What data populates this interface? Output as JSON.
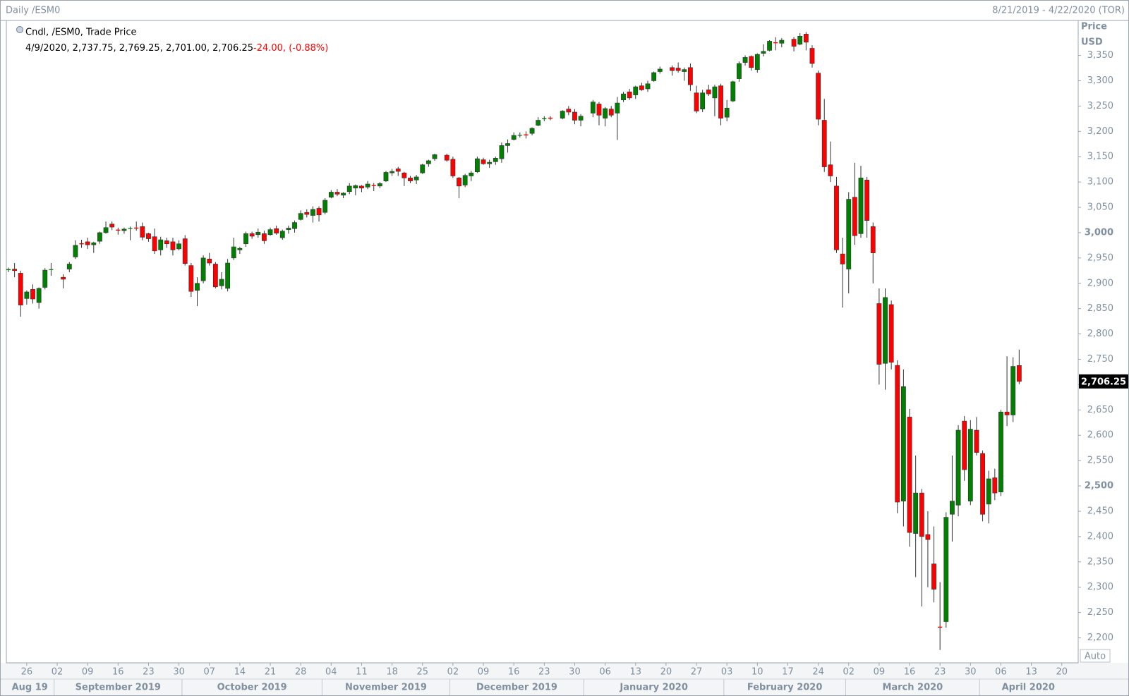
{
  "header": {
    "title": "Daily /ESM0",
    "range": "8/21/2019 - 4/22/2020 (TOR)"
  },
  "chart_data": {
    "type": "candlestick",
    "legend": "Cndl, /ESM0, Trade Price",
    "readout": "4/9/2020, 2,737.75, 2,769.25, 2,701.00, 2,706.25",
    "change": "-24.00, (-0.88%)",
    "ylabel": "Price",
    "yunit": "USD",
    "auto_button": "Auto",
    "up_color": "#008000",
    "down_color": "#ff0000",
    "x": [
      "2019-08-21",
      "2019-08-22",
      "2019-08-23",
      "2019-08-26",
      "2019-08-27",
      "2019-08-28",
      "2019-08-29",
      "2019-08-30",
      "2019-09-03",
      "2019-09-04",
      "2019-09-05",
      "2019-09-06",
      "2019-09-09",
      "2019-09-10",
      "2019-09-11",
      "2019-09-12",
      "2019-09-13",
      "2019-09-16",
      "2019-09-17",
      "2019-09-18",
      "2019-09-19",
      "2019-09-20",
      "2019-09-23",
      "2019-09-24",
      "2019-09-25",
      "2019-09-26",
      "2019-09-27",
      "2019-09-30",
      "2019-10-01",
      "2019-10-02",
      "2019-10-03",
      "2019-10-04",
      "2019-10-07",
      "2019-10-08",
      "2019-10-09",
      "2019-10-10",
      "2019-10-11",
      "2019-10-14",
      "2019-10-15",
      "2019-10-16",
      "2019-10-17",
      "2019-10-18",
      "2019-10-21",
      "2019-10-22",
      "2019-10-23",
      "2019-10-24",
      "2019-10-25",
      "2019-10-28",
      "2019-10-29",
      "2019-10-30",
      "2019-10-31",
      "2019-11-01",
      "2019-11-04",
      "2019-11-05",
      "2019-11-06",
      "2019-11-07",
      "2019-11-08",
      "2019-11-11",
      "2019-11-12",
      "2019-11-13",
      "2019-11-14",
      "2019-11-15",
      "2019-11-18",
      "2019-11-19",
      "2019-11-20",
      "2019-11-21",
      "2019-11-22",
      "2019-11-25",
      "2019-11-26",
      "2019-11-27",
      "2019-11-29",
      "2019-12-02",
      "2019-12-03",
      "2019-12-04",
      "2019-12-05",
      "2019-12-06",
      "2019-12-09",
      "2019-12-10",
      "2019-12-11",
      "2019-12-12",
      "2019-12-13",
      "2019-12-16",
      "2019-12-17",
      "2019-12-18",
      "2019-12-19",
      "2019-12-20",
      "2019-12-23",
      "2019-12-24",
      "2019-12-26",
      "2019-12-27",
      "2019-12-30",
      "2019-12-31",
      "2020-01-02",
      "2020-01-03",
      "2020-01-06",
      "2020-01-07",
      "2020-01-08",
      "2020-01-09",
      "2020-01-10",
      "2020-01-13",
      "2020-01-14",
      "2020-01-15",
      "2020-01-16",
      "2020-01-17",
      "2020-01-21",
      "2020-01-22",
      "2020-01-23",
      "2020-01-24",
      "2020-01-27",
      "2020-01-28",
      "2020-01-29",
      "2020-01-30",
      "2020-01-31",
      "2020-02-03",
      "2020-02-04",
      "2020-02-05",
      "2020-02-06",
      "2020-02-07",
      "2020-02-10",
      "2020-02-11",
      "2020-02-12",
      "2020-02-13",
      "2020-02-14",
      "2020-02-18",
      "2020-02-19",
      "2020-02-20",
      "2020-02-21",
      "2020-02-24",
      "2020-02-25",
      "2020-02-26",
      "2020-02-27",
      "2020-02-28",
      "2020-03-02",
      "2020-03-03",
      "2020-03-04",
      "2020-03-05",
      "2020-03-06",
      "2020-03-09",
      "2020-03-10",
      "2020-03-11",
      "2020-03-12",
      "2020-03-13",
      "2020-03-16",
      "2020-03-17",
      "2020-03-18",
      "2020-03-19",
      "2020-03-20",
      "2020-03-23",
      "2020-03-24",
      "2020-03-25",
      "2020-03-26",
      "2020-03-27",
      "2020-03-30",
      "2020-03-31",
      "2020-04-01",
      "2020-04-02",
      "2020-04-03",
      "2020-04-06",
      "2020-04-07",
      "2020-04-08",
      "2020-04-09"
    ],
    "open": [
      2926,
      2928,
      2920,
      2870,
      2888,
      2862,
      2892,
      2928,
      2912,
      2928,
      2952,
      2979,
      2982,
      2976,
      2983,
      3000,
      3017,
      3006,
      3004,
      3008,
      3010,
      3012,
      2998,
      2992,
      2966,
      2984,
      2982,
      2968,
      2988,
      2935,
      2886,
      2905,
      2948,
      2938,
      2895,
      2890,
      2950,
      2966,
      2978,
      2998,
      2996,
      2998,
      2996,
      3008,
      2990,
      3006,
      3008,
      3026,
      3040,
      3034,
      3048,
      3040,
      3070,
      3080,
      3074,
      3081,
      3088,
      3092,
      3090,
      3094,
      3092,
      3102,
      3118,
      3126,
      3118,
      3108,
      3104,
      3118,
      3136,
      3146,
      3153,
      3145,
      3108,
      3094,
      3112,
      3120,
      3144,
      3136,
      3140,
      3146,
      3172,
      3184,
      3192,
      3194,
      3196,
      3212,
      3224,
      3227,
      3226,
      3244,
      3238,
      3222,
      3236,
      3254,
      3226,
      3244,
      3236,
      3262,
      3278,
      3272,
      3290,
      3284,
      3300,
      3318,
      3326,
      3325,
      3318,
      3326,
      3276,
      3244,
      3282,
      3266,
      3290,
      3228,
      3260,
      3304,
      3336,
      3348,
      3322,
      3354,
      3360,
      3376,
      3374,
      3382,
      3372,
      3392,
      3364,
      3315,
      3222,
      3134,
      3092,
      2958,
      2928,
      3070,
      2998,
      3104,
      3012,
      2860,
      2742,
      2858,
      2738,
      2470,
      2636,
      2406,
      2486,
      2404,
      2346,
      2222,
      2232,
      2444,
      2462,
      2628,
      2470,
      2610,
      2564,
      2464,
      2516,
      2488,
      2646,
      2640,
      2737.75
    ],
    "high": [
      2931,
      2940,
      2925,
      2886,
      2898,
      2892,
      2930,
      2940,
      2918,
      2942,
      2985,
      2986,
      2990,
      2982,
      3002,
      3022,
      3022,
      3010,
      3010,
      3012,
      3022,
      3020,
      3000,
      3008,
      2992,
      2990,
      2990,
      2985,
      2995,
      2940,
      2912,
      2955,
      2960,
      2942,
      2922,
      2948,
      2990,
      2972,
      3002,
      3002,
      3008,
      3004,
      3010,
      3014,
      3006,
      3014,
      3024,
      3044,
      3046,
      3052,
      3052,
      3068,
      3084,
      3086,
      3080,
      3098,
      3095,
      3094,
      3102,
      3098,
      3100,
      3122,
      3126,
      3130,
      3120,
      3112,
      3114,
      3136,
      3144,
      3156,
      3156,
      3150,
      3110,
      3116,
      3122,
      3150,
      3148,
      3144,
      3150,
      3178,
      3184,
      3198,
      3198,
      3200,
      3208,
      3228,
      3230,
      3230,
      3242,
      3250,
      3244,
      3234,
      3262,
      3258,
      3248,
      3250,
      3268,
      3278,
      3284,
      3290,
      3296,
      3300,
      3318,
      3328,
      3330,
      3336,
      3326,
      3334,
      3290,
      3282,
      3292,
      3292,
      3294,
      3262,
      3300,
      3338,
      3350,
      3350,
      3354,
      3372,
      3380,
      3386,
      3384,
      3386,
      3394,
      3396,
      3370,
      3320,
      3264,
      3180,
      3110,
      2990,
      3080,
      3138,
      3132,
      3110,
      3020,
      2890,
      2890,
      2866,
      2748,
      2730,
      2652,
      2560,
      2494,
      2450,
      2420,
      2310,
      2448,
      2560,
      2620,
      2638,
      2630,
      2636,
      2570,
      2530,
      2534,
      2650,
      2756,
      2754,
      2769.25
    ],
    "low": [
      2922,
      2912,
      2834,
      2858,
      2860,
      2850,
      2888,
      2915,
      2890,
      2922,
      2948,
      2970,
      2968,
      2960,
      2978,
      2998,
      3005,
      2996,
      2998,
      2985,
      3004,
      2985,
      2982,
      2958,
      2955,
      2970,
      2955,
      2965,
      2935,
      2873,
      2855,
      2900,
      2935,
      2890,
      2888,
      2884,
      2946,
      2958,
      2972,
      2988,
      2990,
      2978,
      2994,
      2996,
      2986,
      2998,
      3000,
      3024,
      3030,
      3020,
      3022,
      3036,
      3068,
      3072,
      3068,
      3076,
      3074,
      3080,
      3086,
      3082,
      3088,
      3100,
      3112,
      3112,
      3092,
      3098,
      3096,
      3116,
      3130,
      3142,
      3140,
      3108,
      3068,
      3090,
      3102,
      3118,
      3134,
      3128,
      3134,
      3138,
      3158,
      3182,
      3188,
      3186,
      3192,
      3210,
      3220,
      3222,
      3224,
      3232,
      3214,
      3210,
      3228,
      3212,
      3210,
      3228,
      3183,
      3258,
      3262,
      3264,
      3280,
      3278,
      3298,
      3314,
      3310,
      3316,
      3300,
      3280,
      3236,
      3238,
      3270,
      3230,
      3212,
      3220,
      3258,
      3298,
      3330,
      3320,
      3316,
      3348,
      3358,
      3360,
      3366,
      3358,
      3370,
      3360,
      3326,
      3212,
      3120,
      3100,
      2960,
      2852,
      2880,
      2976,
      2990,
      2990,
      2900,
      2700,
      2690,
      2730,
      2446,
      2420,
      2380,
      2320,
      2262,
      2300,
      2270,
      2176,
      2220,
      2390,
      2440,
      2510,
      2462,
      2560,
      2430,
      2426,
      2472,
      2480,
      2618,
      2626,
      2701
    ],
    "close": [
      2928,
      2925,
      2857,
      2883,
      2869,
      2890,
      2926,
      2928,
      2908,
      2938,
      2975,
      2977,
      2976,
      2980,
      3000,
      3010,
      3011,
      3004,
      3007,
      3009,
      3008,
      2991,
      2988,
      2964,
      2986,
      2978,
      2966,
      2978,
      2939,
      2884,
      2900,
      2950,
      2940,
      2893,
      2908,
      2940,
      2972,
      2969,
      2998,
      2993,
      3001,
      2984,
      3006,
      2999,
      3003,
      3009,
      3020,
      3038,
      3036,
      3046,
      3035,
      3064,
      3080,
      3076,
      3078,
      3092,
      3093,
      3088,
      3096,
      3092,
      3097,
      3119,
      3121,
      3121,
      3108,
      3102,
      3110,
      3134,
      3142,
      3154,
      3143,
      3112,
      3092,
      3113,
      3118,
      3146,
      3136,
      3139,
      3147,
      3172,
      3176,
      3192,
      3193,
      3192,
      3206,
      3222,
      3226,
      3225,
      3240,
      3238,
      3222,
      3230,
      3258,
      3232,
      3245,
      3232,
      3256,
      3274,
      3266,
      3288,
      3282,
      3294,
      3316,
      3323,
      3320,
      3320,
      3322,
      3292,
      3240,
      3276,
      3274,
      3288,
      3226,
      3246,
      3298,
      3334,
      3346,
      3326,
      3352,
      3358,
      3378,
      3374,
      3380,
      3368,
      3388,
      3376,
      3334,
      3224,
      3130,
      3112,
      2966,
      2938,
      3066,
      2994,
      3108,
      3024,
      2960,
      2740,
      2872,
      2744,
      2468,
      2696,
      2408,
      2486,
      2400,
      2394,
      2296,
      2220,
      2438,
      2470,
      2610,
      2532,
      2612,
      2566,
      2444,
      2514,
      2486,
      2646,
      2640,
      2736,
      2706.25
    ],
    "xlim": [
      "2019-08-21",
      "2020-04-22"
    ],
    "xticks": [
      {
        "value": "2019-08-26",
        "label": "26"
      },
      {
        "value": "2019-09-02",
        "label": "02"
      },
      {
        "value": "2019-09-09",
        "label": "09"
      },
      {
        "value": "2019-09-16",
        "label": "16"
      },
      {
        "value": "2019-09-23",
        "label": "23"
      },
      {
        "value": "2019-09-30",
        "label": "30"
      },
      {
        "value": "2019-10-07",
        "label": "07"
      },
      {
        "value": "2019-10-14",
        "label": "14"
      },
      {
        "value": "2019-10-21",
        "label": "21"
      },
      {
        "value": "2019-10-28",
        "label": "28"
      },
      {
        "value": "2019-11-04",
        "label": "04"
      },
      {
        "value": "2019-11-11",
        "label": "11"
      },
      {
        "value": "2019-11-18",
        "label": "18"
      },
      {
        "value": "2019-11-25",
        "label": "25"
      },
      {
        "value": "2019-12-02",
        "label": "02"
      },
      {
        "value": "2019-12-09",
        "label": "09"
      },
      {
        "value": "2019-12-16",
        "label": "16"
      },
      {
        "value": "2019-12-23",
        "label": "23"
      },
      {
        "value": "2019-12-30",
        "label": "30"
      },
      {
        "value": "2020-01-06",
        "label": "06"
      },
      {
        "value": "2020-01-13",
        "label": "13"
      },
      {
        "value": "2020-01-20",
        "label": "20"
      },
      {
        "value": "2020-01-27",
        "label": "27"
      },
      {
        "value": "2020-02-03",
        "label": "03"
      },
      {
        "value": "2020-02-10",
        "label": "10"
      },
      {
        "value": "2020-02-17",
        "label": "17"
      },
      {
        "value": "2020-02-24",
        "label": "24"
      },
      {
        "value": "2020-03-02",
        "label": "02"
      },
      {
        "value": "2020-03-09",
        "label": "09"
      },
      {
        "value": "2020-03-16",
        "label": "16"
      },
      {
        "value": "2020-03-23",
        "label": "23"
      },
      {
        "value": "2020-03-30",
        "label": "30"
      },
      {
        "value": "2020-04-06",
        "label": "06"
      },
      {
        "value": "2020-04-13",
        "label": "13"
      },
      {
        "value": "2020-04-20",
        "label": "20"
      }
    ],
    "months": [
      {
        "value": "2019-08",
        "label": "Aug 19"
      },
      {
        "value": "2019-09",
        "label": "September 2019"
      },
      {
        "value": "2019-10",
        "label": "October 2019"
      },
      {
        "value": "2019-11",
        "label": "November 2019"
      },
      {
        "value": "2019-12",
        "label": "December 2019"
      },
      {
        "value": "2020-01",
        "label": "January 2020"
      },
      {
        "value": "2020-02",
        "label": "February 2020"
      },
      {
        "value": "2020-03",
        "label": "March 2020"
      },
      {
        "value": "2020-04",
        "label": "April 2020"
      }
    ],
    "ylim": [
      2152,
      3419
    ],
    "yticks": [
      {
        "value": 2200,
        "label": "2,200"
      },
      {
        "value": 2250,
        "label": "2,250"
      },
      {
        "value": 2300,
        "label": "2,300"
      },
      {
        "value": 2350,
        "label": "2,350"
      },
      {
        "value": 2400,
        "label": "2,400"
      },
      {
        "value": 2450,
        "label": "2,450"
      },
      {
        "value": 2500,
        "label": "2,500"
      },
      {
        "value": 2550,
        "label": "2,550"
      },
      {
        "value": 2600,
        "label": "2,600"
      },
      {
        "value": 2650,
        "label": "2,650"
      },
      {
        "value": 2700,
        "label": "2,700"
      },
      {
        "value": 2750,
        "label": "2,750"
      },
      {
        "value": 2800,
        "label": "2,800"
      },
      {
        "value": 2850,
        "label": "2,850"
      },
      {
        "value": 2900,
        "label": "2,900"
      },
      {
        "value": 2950,
        "label": "2,950"
      },
      {
        "value": 3000,
        "label": "3,000"
      },
      {
        "value": 3050,
        "label": "3,050"
      },
      {
        "value": 3100,
        "label": "3,100"
      },
      {
        "value": 3150,
        "label": "3,150"
      },
      {
        "value": 3200,
        "label": "3,200"
      },
      {
        "value": 3250,
        "label": "3,250"
      },
      {
        "value": 3300,
        "label": "3,300"
      },
      {
        "value": 3350,
        "label": "3,350"
      }
    ],
    "last_price": {
      "value": 2706.25,
      "label": "2,706.25"
    }
  }
}
